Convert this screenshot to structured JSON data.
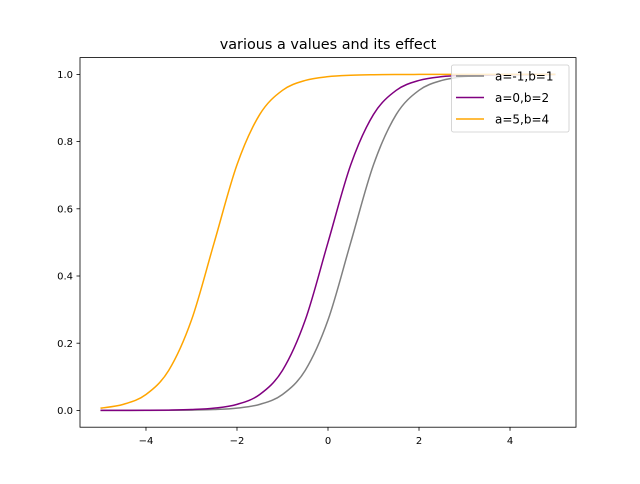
{
  "chart_data": {
    "type": "line",
    "title": "various a values and its effect",
    "xlabel": "",
    "ylabel": "",
    "xlim": [
      -5.45,
      5.45
    ],
    "ylim": [
      -0.05,
      1.05
    ],
    "xticks": [
      -4,
      -2,
      0,
      2,
      4
    ],
    "xtick_labels": [
      "−4",
      "−2",
      "0",
      "2",
      "4"
    ],
    "yticks": [
      0.0,
      0.2,
      0.4,
      0.6,
      0.8,
      1.0
    ],
    "ytick_labels": [
      "0.0",
      "0.2",
      "0.4",
      "0.6",
      "0.8",
      "1.0"
    ],
    "grid": false,
    "legend_position": "top-right",
    "x": [
      -5,
      -4.5,
      -4,
      -3.5,
      -3,
      -2.5,
      -2,
      -1.5,
      -1,
      -0.5,
      0,
      0.5,
      1,
      1.5,
      2,
      2.5,
      3,
      3.5,
      4,
      4.5,
      5
    ],
    "series": [
      {
        "name": "a=-1,b=1",
        "color": "#808080",
        "values": [
          0,
          0,
          0.0001,
          0.0003,
          0.0009,
          0.0025,
          0.0067,
          0.018,
          0.0474,
          0.1192,
          0.2689,
          0.5,
          0.7311,
          0.8808,
          0.9526,
          0.982,
          0.9933,
          0.9975,
          0.9991,
          0.9997,
          0.9999
        ]
      },
      {
        "name": "a=0,b=2",
        "color": "#800080",
        "values": [
          0,
          0.0001,
          0.0003,
          0.0009,
          0.0025,
          0.0067,
          0.018,
          0.0474,
          0.1192,
          0.2689,
          0.5,
          0.7311,
          0.8808,
          0.9526,
          0.982,
          0.9933,
          0.9975,
          0.9991,
          0.9997,
          0.9999,
          1
        ]
      },
      {
        "name": "a=5,b=4",
        "color": "#ffa500",
        "values": [
          0.0067,
          0.018,
          0.0474,
          0.1192,
          0.2689,
          0.5,
          0.7311,
          0.8808,
          0.9526,
          0.982,
          0.9933,
          0.9975,
          0.9991,
          0.9997,
          0.9999,
          1,
          1,
          1,
          1,
          1,
          1
        ]
      }
    ]
  }
}
